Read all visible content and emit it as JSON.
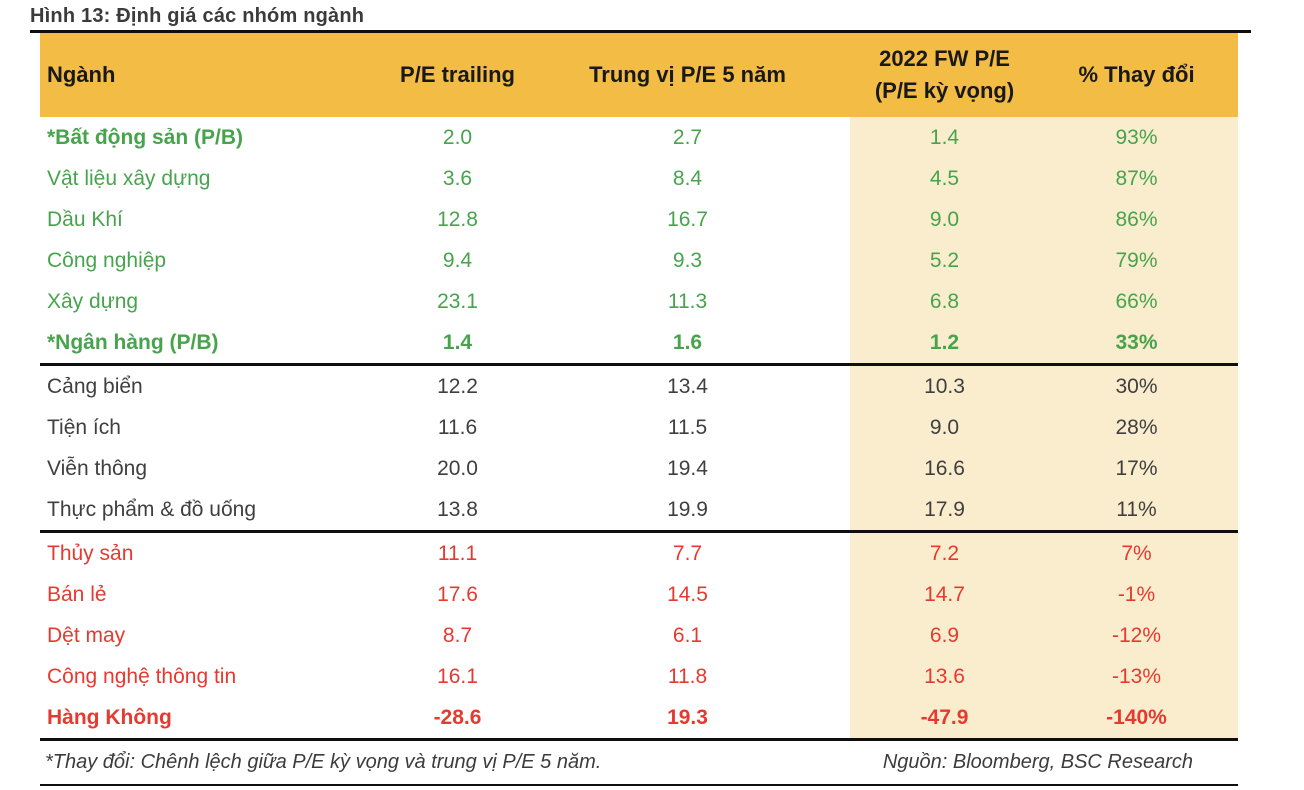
{
  "figure": {
    "title": "Hình 13: Định giá các nhóm ngành"
  },
  "table": {
    "headers": {
      "industry": "Ngành",
      "pe_trailing": "P/E trailing",
      "median_pe_5y": "Trung vị P/E 5 năm",
      "fw_pe_line1": "2022 FW P/E",
      "fw_pe_line2": "(P/E kỳ vọng)",
      "pct_change": "% Thay đổi"
    },
    "rows": [
      {
        "cells": [
          "*Bất động sản (P/B)",
          "2.0",
          "2.7",
          "1.4",
          "93%"
        ],
        "group": "green",
        "bold_label": true,
        "bold_values": false,
        "section_end": false
      },
      {
        "cells": [
          "Vật liệu xây dựng",
          "3.6",
          "8.4",
          "4.5",
          "87%"
        ],
        "group": "green",
        "bold_label": false,
        "bold_values": false,
        "section_end": false
      },
      {
        "cells": [
          "Dầu Khí",
          "12.8",
          "16.7",
          "9.0",
          "86%"
        ],
        "group": "green",
        "bold_label": false,
        "bold_values": false,
        "section_end": false
      },
      {
        "cells": [
          "Công nghiệp",
          "9.4",
          "9.3",
          "5.2",
          "79%"
        ],
        "group": "green",
        "bold_label": false,
        "bold_values": false,
        "section_end": false
      },
      {
        "cells": [
          "Xây dựng",
          "23.1",
          "11.3",
          "6.8",
          "66%"
        ],
        "group": "green",
        "bold_label": false,
        "bold_values": false,
        "section_end": false
      },
      {
        "cells": [
          "*Ngân hàng (P/B)",
          "1.4",
          "1.6",
          "1.2",
          "33%"
        ],
        "group": "green",
        "bold_label": true,
        "bold_values": true,
        "section_end": true
      },
      {
        "cells": [
          "Cảng biển",
          "12.2",
          "13.4",
          "10.3",
          "30%"
        ],
        "group": "neutral",
        "bold_label": false,
        "bold_values": false,
        "section_end": false
      },
      {
        "cells": [
          "Tiện ích",
          "11.6",
          "11.5",
          "9.0",
          "28%"
        ],
        "group": "neutral",
        "bold_label": false,
        "bold_values": false,
        "section_end": false
      },
      {
        "cells": [
          "Viễn thông",
          "20.0",
          "19.4",
          "16.6",
          "17%"
        ],
        "group": "neutral",
        "bold_label": false,
        "bold_values": false,
        "section_end": false
      },
      {
        "cells": [
          "Thực phẩm & đồ uống",
          "13.8",
          "19.9",
          "17.9",
          "11%"
        ],
        "group": "neutral",
        "bold_label": false,
        "bold_values": false,
        "section_end": true
      },
      {
        "cells": [
          "Thủy sản",
          "11.1",
          "7.7",
          "7.2",
          "7%"
        ],
        "group": "red",
        "bold_label": false,
        "bold_values": false,
        "section_end": false
      },
      {
        "cells": [
          "Bán lẻ",
          "17.6",
          "14.5",
          "14.7",
          "-1%"
        ],
        "group": "red",
        "bold_label": false,
        "bold_values": false,
        "section_end": false
      },
      {
        "cells": [
          "Dệt may",
          "8.7",
          "6.1",
          "6.9",
          "-12%"
        ],
        "group": "red",
        "bold_label": false,
        "bold_values": false,
        "section_end": false
      },
      {
        "cells": [
          "Công nghệ thông tin",
          "16.1",
          "11.8",
          "13.6",
          "-13%"
        ],
        "group": "red",
        "bold_label": false,
        "bold_values": false,
        "section_end": false
      },
      {
        "cells": [
          "Hàng Không",
          "-28.6",
          "19.3",
          "-47.9",
          "-140%"
        ],
        "group": "red",
        "bold_label": true,
        "bold_values": true,
        "section_end": true
      }
    ]
  },
  "footer": {
    "note": "*Thay đổi: Chênh lệch giữa P/E kỳ vọng và trung vị P/E 5 năm.",
    "source": "Nguồn: Bloomberg, BSC Research"
  },
  "colors": {
    "header_bg": "#F2BC45",
    "highlight_bg": "#FAEDCE",
    "green": "#47A44D",
    "red": "#E63A30",
    "neutral": "#3F3F3F",
    "line": "#0E0E0E"
  },
  "chart_data": {
    "type": "table",
    "title": "Hình 13: Định giá các nhóm ngành",
    "columns": [
      "Ngành",
      "P/E trailing",
      "Trung vị P/E 5 năm",
      "2022 FW P/E (P/E kỳ vọng)",
      "% Thay đổi"
    ],
    "rows": [
      [
        "*Bất động sản (P/B)",
        2.0,
        2.7,
        1.4,
        "93%"
      ],
      [
        "Vật liệu xây dựng",
        3.6,
        8.4,
        4.5,
        "87%"
      ],
      [
        "Dầu Khí",
        12.8,
        16.7,
        9.0,
        "86%"
      ],
      [
        "Công nghiệp",
        9.4,
        9.3,
        5.2,
        "79%"
      ],
      [
        "Xây dựng",
        23.1,
        11.3,
        6.8,
        "66%"
      ],
      [
        "*Ngân hàng (P/B)",
        1.4,
        1.6,
        1.2,
        "33%"
      ],
      [
        "Cảng biển",
        12.2,
        13.4,
        10.3,
        "30%"
      ],
      [
        "Tiện ích",
        11.6,
        11.5,
        9.0,
        "28%"
      ],
      [
        "Viễn thông",
        20.0,
        19.4,
        16.6,
        "17%"
      ],
      [
        "Thực phẩm & đồ uống",
        13.8,
        19.9,
        17.9,
        "11%"
      ],
      [
        "Thủy sản",
        11.1,
        7.7,
        7.2,
        "7%"
      ],
      [
        "Bán lẻ",
        17.6,
        14.5,
        14.7,
        "-1%"
      ],
      [
        "Dệt may",
        8.7,
        6.1,
        6.9,
        "-12%"
      ],
      [
        "Công nghệ thông tin",
        16.1,
        11.8,
        13.6,
        "-13%"
      ],
      [
        "Hàng Không",
        -28.6,
        19.3,
        -47.9,
        "-140%"
      ]
    ],
    "notes": [
      "*Thay đổi: Chênh lệch giữa P/E kỳ vọng và trung vị P/E 5 năm.",
      "Nguồn: Bloomberg, BSC Research"
    ]
  }
}
